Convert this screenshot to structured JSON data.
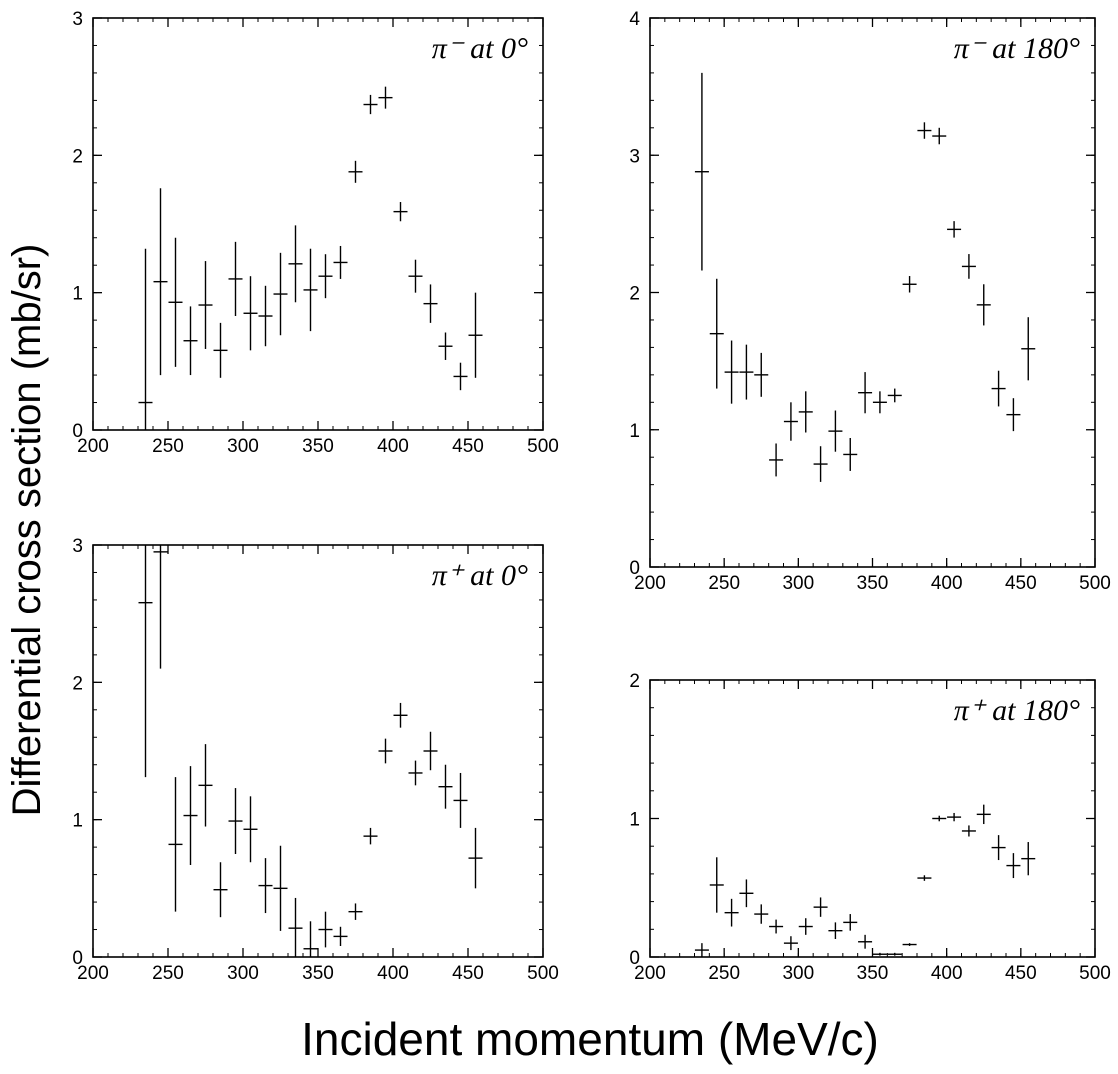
{
  "figure": {
    "ylabel": "Differential cross section (mb/sr)",
    "xlabel": "Incident momentum (MeV/c)"
  },
  "chart_data": [
    {
      "type": "scatter",
      "title": "π⁻ at 0°",
      "xlim": [
        200,
        500
      ],
      "ylim": [
        0,
        3
      ],
      "xticks": [
        200,
        250,
        300,
        350,
        400,
        450,
        500
      ],
      "yticks": [
        0,
        1,
        2,
        3
      ],
      "points": [
        {
          "x": 235,
          "y": 0.2,
          "err": 1.12
        },
        {
          "x": 245,
          "y": 1.08,
          "err": 0.68
        },
        {
          "x": 255,
          "y": 0.93,
          "err": 0.47
        },
        {
          "x": 265,
          "y": 0.65,
          "err": 0.25
        },
        {
          "x": 275,
          "y": 0.91,
          "err": 0.32
        },
        {
          "x": 285,
          "y": 0.58,
          "err": 0.2
        },
        {
          "x": 295,
          "y": 1.1,
          "err": 0.27
        },
        {
          "x": 305,
          "y": 0.85,
          "err": 0.27
        },
        {
          "x": 315,
          "y": 0.83,
          "err": 0.22
        },
        {
          "x": 325,
          "y": 0.99,
          "err": 0.3
        },
        {
          "x": 335,
          "y": 1.21,
          "err": 0.28
        },
        {
          "x": 345,
          "y": 1.02,
          "err": 0.3
        },
        {
          "x": 355,
          "y": 1.12,
          "err": 0.16
        },
        {
          "x": 365,
          "y": 1.22,
          "err": 0.12
        },
        {
          "x": 375,
          "y": 1.88,
          "err": 0.08
        },
        {
          "x": 385,
          "y": 2.37,
          "err": 0.07
        },
        {
          "x": 395,
          "y": 2.42,
          "err": 0.08
        },
        {
          "x": 405,
          "y": 1.59,
          "err": 0.07
        },
        {
          "x": 415,
          "y": 1.12,
          "err": 0.12
        },
        {
          "x": 425,
          "y": 0.92,
          "err": 0.14
        },
        {
          "x": 435,
          "y": 0.61,
          "err": 0.1
        },
        {
          "x": 445,
          "y": 0.39,
          "err": 0.1
        },
        {
          "x": 455,
          "y": 0.69,
          "err": 0.31
        }
      ]
    },
    {
      "type": "scatter",
      "title": "π⁻ at 180°",
      "xlim": [
        200,
        500
      ],
      "ylim": [
        0,
        4
      ],
      "xticks": [
        200,
        250,
        300,
        350,
        400,
        450,
        500
      ],
      "yticks": [
        0,
        1,
        2,
        3,
        4
      ],
      "points": [
        {
          "x": 235,
          "y": 2.88,
          "err": 0.72
        },
        {
          "x": 245,
          "y": 1.7,
          "err": 0.4
        },
        {
          "x": 255,
          "y": 1.42,
          "err": 0.23
        },
        {
          "x": 265,
          "y": 1.42,
          "err": 0.2
        },
        {
          "x": 275,
          "y": 1.4,
          "err": 0.16
        },
        {
          "x": 285,
          "y": 0.78,
          "err": 0.12
        },
        {
          "x": 295,
          "y": 1.06,
          "err": 0.14
        },
        {
          "x": 305,
          "y": 1.13,
          "err": 0.15
        },
        {
          "x": 315,
          "y": 0.75,
          "err": 0.13
        },
        {
          "x": 325,
          "y": 0.99,
          "err": 0.15
        },
        {
          "x": 335,
          "y": 0.82,
          "err": 0.12
        },
        {
          "x": 345,
          "y": 1.27,
          "err": 0.15
        },
        {
          "x": 355,
          "y": 1.2,
          "err": 0.08
        },
        {
          "x": 365,
          "y": 1.25,
          "err": 0.05
        },
        {
          "x": 375,
          "y": 2.06,
          "err": 0.06
        },
        {
          "x": 385,
          "y": 3.18,
          "err": 0.06
        },
        {
          "x": 395,
          "y": 3.14,
          "err": 0.06
        },
        {
          "x": 405,
          "y": 2.46,
          "err": 0.06
        },
        {
          "x": 415,
          "y": 2.19,
          "err": 0.09
        },
        {
          "x": 425,
          "y": 1.91,
          "err": 0.15
        },
        {
          "x": 435,
          "y": 1.3,
          "err": 0.13
        },
        {
          "x": 445,
          "y": 1.11,
          "err": 0.12
        },
        {
          "x": 455,
          "y": 1.59,
          "err": 0.23
        }
      ]
    },
    {
      "type": "scatter",
      "title": "π⁺ at 0°",
      "xlim": [
        200,
        500
      ],
      "ylim": [
        0,
        3
      ],
      "xticks": [
        200,
        250,
        300,
        350,
        400,
        450,
        500
      ],
      "yticks": [
        0,
        1,
        2,
        3
      ],
      "points": [
        {
          "x": 235,
          "y": 2.58,
          "err": 1.27
        },
        {
          "x": 245,
          "y": 2.95,
          "err": 0.85
        },
        {
          "x": 255,
          "y": 0.82,
          "err": 0.49
        },
        {
          "x": 265,
          "y": 1.03,
          "err": 0.36
        },
        {
          "x": 275,
          "y": 1.25,
          "err": 0.3
        },
        {
          "x": 285,
          "y": 0.49,
          "err": 0.2
        },
        {
          "x": 295,
          "y": 0.99,
          "err": 0.24
        },
        {
          "x": 305,
          "y": 0.93,
          "err": 0.24
        },
        {
          "x": 315,
          "y": 0.52,
          "err": 0.2
        },
        {
          "x": 325,
          "y": 0.5,
          "err": 0.31
        },
        {
          "x": 335,
          "y": 0.21,
          "err": 0.22
        },
        {
          "x": 345,
          "y": 0.06,
          "err": 0.2
        },
        {
          "x": 355,
          "y": 0.2,
          "err": 0.13
        },
        {
          "x": 365,
          "y": 0.15,
          "err": 0.07
        },
        {
          "x": 375,
          "y": 0.33,
          "err": 0.06
        },
        {
          "x": 385,
          "y": 0.88,
          "err": 0.06
        },
        {
          "x": 395,
          "y": 1.5,
          "err": 0.09
        },
        {
          "x": 405,
          "y": 1.76,
          "err": 0.09
        },
        {
          "x": 415,
          "y": 1.34,
          "err": 0.09
        },
        {
          "x": 425,
          "y": 1.5,
          "err": 0.14
        },
        {
          "x": 435,
          "y": 1.24,
          "err": 0.16
        },
        {
          "x": 445,
          "y": 1.14,
          "err": 0.2
        },
        {
          "x": 455,
          "y": 0.72,
          "err": 0.22
        }
      ]
    },
    {
      "type": "scatter",
      "title": "π⁺ at 180°",
      "xlim": [
        200,
        500
      ],
      "ylim": [
        0,
        2
      ],
      "xticks": [
        200,
        250,
        300,
        350,
        400,
        450,
        500
      ],
      "yticks": [
        0,
        1,
        2
      ],
      "points": [
        {
          "x": 235,
          "y": 0.05,
          "err": 0.05
        },
        {
          "x": 245,
          "y": 0.52,
          "err": 0.2
        },
        {
          "x": 255,
          "y": 0.32,
          "err": 0.1
        },
        {
          "x": 265,
          "y": 0.46,
          "err": 0.1
        },
        {
          "x": 275,
          "y": 0.31,
          "err": 0.07
        },
        {
          "x": 285,
          "y": 0.22,
          "err": 0.05
        },
        {
          "x": 295,
          "y": 0.1,
          "err": 0.05
        },
        {
          "x": 305,
          "y": 0.22,
          "err": 0.06
        },
        {
          "x": 315,
          "y": 0.36,
          "err": 0.07
        },
        {
          "x": 325,
          "y": 0.19,
          "err": 0.06
        },
        {
          "x": 335,
          "y": 0.25,
          "err": 0.06
        },
        {
          "x": 345,
          "y": 0.11,
          "err": 0.05
        },
        {
          "x": 355,
          "y": 0.02,
          "err": 0.01
        },
        {
          "x": 365,
          "y": 0.02,
          "err": 0.01
        },
        {
          "x": 375,
          "y": 0.09,
          "err": 0.01
        },
        {
          "x": 385,
          "y": 0.57,
          "err": 0.02
        },
        {
          "x": 395,
          "y": 1.0,
          "err": 0.02
        },
        {
          "x": 405,
          "y": 1.01,
          "err": 0.03
        },
        {
          "x": 415,
          "y": 0.91,
          "err": 0.04
        },
        {
          "x": 425,
          "y": 1.03,
          "err": 0.07
        },
        {
          "x": 435,
          "y": 0.79,
          "err": 0.09
        },
        {
          "x": 445,
          "y": 0.66,
          "err": 0.09
        },
        {
          "x": 455,
          "y": 0.71,
          "err": 0.12
        }
      ]
    }
  ]
}
